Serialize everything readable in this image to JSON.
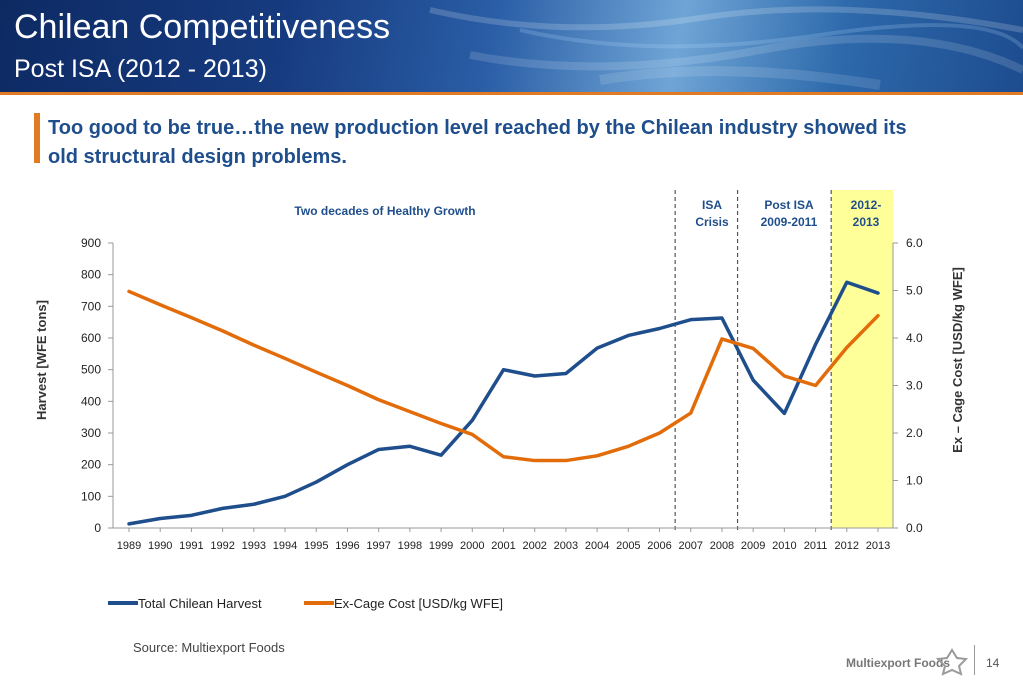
{
  "header": {
    "title": "Chilean Competitiveness",
    "subtitle": "Post ISA (2012 - 2013)"
  },
  "headline": "Too good to be true…the new production level reached by the Chilean industry showed its old structural design problems.",
  "chart_data": {
    "type": "line",
    "x": [
      1989,
      1990,
      1991,
      1992,
      1993,
      1994,
      1995,
      1996,
      1997,
      1998,
      1999,
      2000,
      2001,
      2002,
      2003,
      2004,
      2005,
      2006,
      2007,
      2008,
      2009,
      2010,
      2011,
      2012,
      2013
    ],
    "series": [
      {
        "name": "Total Chilean Harvest",
        "axis": "left",
        "color": "#1f4e8c",
        "values": [
          13,
          30,
          40,
          62,
          75,
          100,
          145,
          200,
          248,
          258,
          230,
          340,
          500,
          480,
          488,
          568,
          608,
          630,
          658,
          663,
          467,
          362,
          580,
          776,
          742
        ]
      },
      {
        "name": "Ex-Cage Cost [USD/kg WFE]",
        "axis": "right",
        "color": "#e36c0a",
        "values": [
          4.98,
          4.7,
          4.43,
          4.15,
          3.85,
          3.57,
          3.28,
          3.0,
          2.7,
          2.45,
          2.2,
          1.97,
          1.5,
          1.42,
          1.42,
          1.52,
          1.72,
          2.0,
          2.42,
          3.98,
          3.78,
          3.2,
          3.0,
          3.8,
          4.47
        ]
      }
    ],
    "ylabel": "Harvest [WFE tons]",
    "y2label": "Ex – Cage Cost [USD/kg WFE]",
    "ylim": [
      0,
      900
    ],
    "y2lim": [
      0,
      6
    ],
    "yticks": [
      "0",
      "100",
      "200",
      "300",
      "400",
      "500",
      "600",
      "700",
      "800",
      "900"
    ],
    "y2ticks": [
      "0.0",
      "1.0",
      "2.0",
      "3.0",
      "4.0",
      "5.0",
      "6.0"
    ],
    "grid": false,
    "legend": "bottom",
    "annotations": [
      {
        "text": "Two decades of Healthy Growth"
      },
      {
        "text": "ISA Crisis"
      },
      {
        "text": "Post ISA 2009-2011"
      },
      {
        "text": "2012- 2013"
      }
    ],
    "highlight": {
      "from": 2011.5,
      "to": 2013.5,
      "color": "#ffff99"
    },
    "dividers": [
      2006.5,
      2008.5,
      2011.5
    ]
  },
  "footer": {
    "source": "Source: Multiexport Foods",
    "brand": "Multiexport Foods",
    "page": "14"
  }
}
